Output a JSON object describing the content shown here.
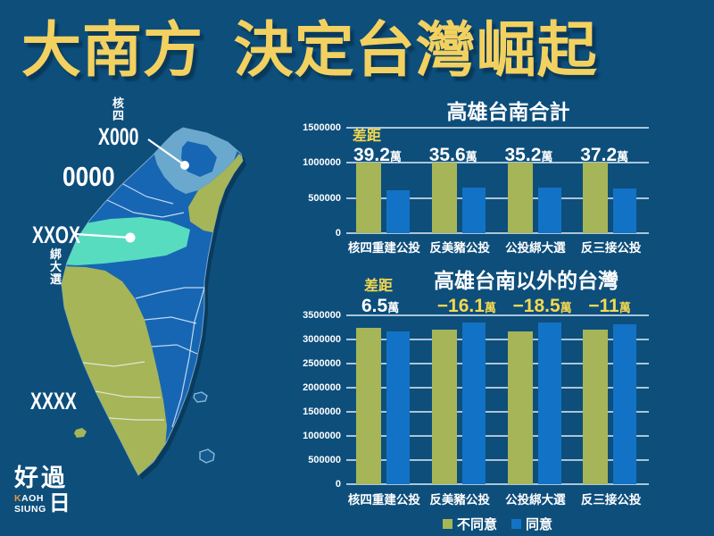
{
  "title": "大南方 決定台灣崛起",
  "map": {
    "callout_nuclear": {
      "prefix_vertical": "核四",
      "code": "X000"
    },
    "label_all_agree": "0000",
    "callout_tied": {
      "code": "XXOX",
      "suffix_vertical": "綁大選"
    },
    "label_all_disagree": "XXXX",
    "regions": [
      {
        "id": "agree-all",
        "pattern": "0000",
        "color": "#1766b4"
      },
      {
        "id": "no-nuclear-only",
        "pattern": "X000",
        "color": "#6aa9cd"
      },
      {
        "id": "yes-tied-election-only",
        "pattern": "XXOX",
        "color": "#57dcc0"
      },
      {
        "id": "disagree-all",
        "pattern": "XXXX",
        "color": "#a6b557"
      }
    ]
  },
  "chart_data": [
    {
      "type": "bar",
      "title": "高雄台南合計",
      "categories": [
        "核四重建公投",
        "反美豬公投",
        "公投綁大選",
        "反三接公投"
      ],
      "series": [
        {
          "name": "不同意",
          "color": "#a6b557",
          "values": [
            1000000,
            1000000,
            1000000,
            1005000
          ]
        },
        {
          "name": "同意",
          "color": "#1273c6",
          "values": [
            608000,
            644000,
            648000,
            633000
          ]
        }
      ],
      "gap_label": "差距",
      "gap_values": [
        {
          "num": "39.2",
          "unit": "萬",
          "color": "#ffffff"
        },
        {
          "num": "35.6",
          "unit": "萬",
          "color": "#ffffff"
        },
        {
          "num": "35.2",
          "unit": "萬",
          "color": "#ffffff"
        },
        {
          "num": "37.2",
          "unit": "萬",
          "color": "#ffffff"
        }
      ],
      "ylim": [
        0,
        1500000
      ],
      "ytick_step": 500000,
      "yticks": [
        "0",
        "500000",
        "1000000",
        "1500000"
      ],
      "grid": true,
      "legend_position": "shared-bottom"
    },
    {
      "type": "bar",
      "title": "高雄台南以外的台灣",
      "categories": [
        "核四重建公投",
        "反美豬公投",
        "公投綁大選",
        "反三接公投"
      ],
      "series": [
        {
          "name": "不同意",
          "color": "#a6b557",
          "values": [
            3240000,
            3195000,
            3175000,
            3205000
          ]
        },
        {
          "name": "同意",
          "color": "#1273c6",
          "values": [
            3175000,
            3356000,
            3360000,
            3315000
          ]
        }
      ],
      "gap_label": "差距",
      "gap_values": [
        {
          "num": "6.5",
          "unit": "萬",
          "color": "#ffffff"
        },
        {
          "num": "−16.1",
          "unit": "萬",
          "color": "#f5d94e"
        },
        {
          "num": "−18.5",
          "unit": "萬",
          "color": "#f5d94e"
        },
        {
          "num": "−11",
          "unit": "萬",
          "color": "#f5d94e"
        }
      ],
      "ylim": [
        0,
        3500000
      ],
      "ytick_step": 500000,
      "yticks": [
        "0",
        "500000",
        "1000000",
        "1500000",
        "2000000",
        "2500000",
        "3000000",
        "3500000"
      ],
      "grid": true,
      "legend_position": "shared-bottom"
    }
  ],
  "legend": {
    "items": [
      {
        "label": "不同意",
        "color": "#a6b557"
      },
      {
        "label": "同意",
        "color": "#1273c6"
      }
    ]
  },
  "logo": {
    "zh_top": "好過",
    "zh_bottom": "日",
    "en_line1_accent": "K",
    "en_line1_rest": "AOH",
    "en_line2": "SIUNG"
  },
  "colors": {
    "background": "#0d4e7b",
    "accent_yellow": "#f3d160",
    "text": "#ffffff",
    "gridline": "#bdd3e2",
    "logo_accent": "#f0933c"
  }
}
